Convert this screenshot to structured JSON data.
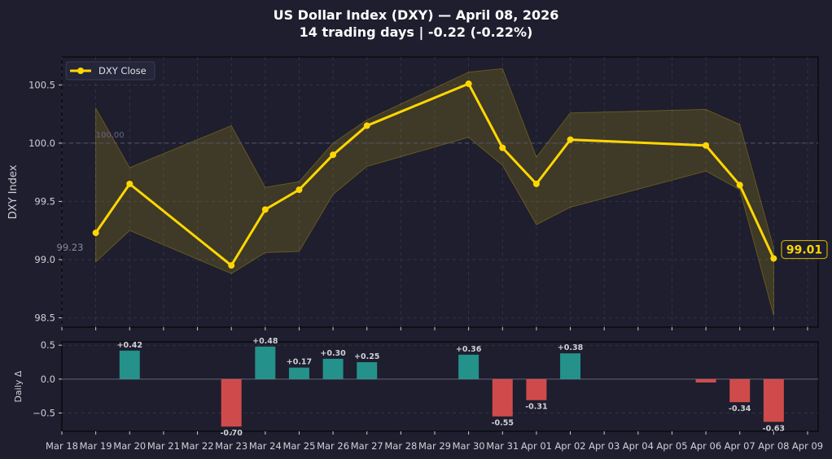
{
  "chart_data": [
    {
      "type": "line",
      "title": "US Dollar Index (DXY)  —  April 08, 2026",
      "subtitle": "14 trading days  |  -0.22 (-0.22%)",
      "xlabel": "",
      "ylabel": "DXY Index",
      "ylim": [
        98.42,
        100.74
      ],
      "yticks": [
        98.5,
        99.0,
        99.5,
        100.0,
        100.5
      ],
      "ytick_labels": [
        "98.5",
        "99.0",
        "99.5",
        "100.0",
        "100.5"
      ],
      "grid": true,
      "legend": "top-left",
      "series": [
        {
          "name": "DXY Close",
          "color": "#ffd700",
          "x": [
            "2026-03-19",
            "2026-03-20",
            "2026-03-23",
            "2026-03-24",
            "2026-03-25",
            "2026-03-26",
            "2026-03-27",
            "2026-03-30",
            "2026-03-31",
            "2026-04-01",
            "2026-04-02",
            "2026-04-06",
            "2026-04-07",
            "2026-04-08"
          ],
          "values": [
            99.23,
            99.65,
            98.95,
            99.43,
            99.6,
            99.9,
            100.15,
            100.51,
            99.96,
            99.65,
            100.03,
            99.98,
            99.64,
            99.01
          ],
          "high": [
            100.3,
            99.79,
            100.15,
            99.62,
            99.67,
            100.0,
            100.2,
            100.61,
            100.64,
            99.88,
            100.26,
            100.29,
            100.16,
            99.1
          ],
          "low": [
            98.98,
            99.25,
            98.88,
            99.06,
            99.07,
            99.56,
            99.8,
            100.05,
            99.81,
            99.3,
            99.45,
            99.76,
            99.6,
            98.52
          ]
        }
      ],
      "reference_line": {
        "value": 100.0,
        "label": "100.00"
      },
      "annotations": {
        "start_label": "99.23",
        "end_label": "99.01"
      }
    },
    {
      "type": "bar",
      "ylabel": "Daily Δ",
      "ylim": [
        -0.77,
        0.55
      ],
      "yticks": [
        -0.5,
        0.0,
        0.5
      ],
      "ytick_labels": [
        "−0.5",
        "0.0",
        "0.5"
      ],
      "positive_color": "#26a69a",
      "negative_color": "#ef5350",
      "x": [
        "2026-03-20",
        "2026-03-23",
        "2026-03-24",
        "2026-03-25",
        "2026-03-26",
        "2026-03-27",
        "2026-03-30",
        "2026-03-31",
        "2026-04-01",
        "2026-04-02",
        "2026-04-06",
        "2026-04-07",
        "2026-04-08"
      ],
      "values": [
        0.42,
        -0.7,
        0.48,
        0.17,
        0.3,
        0.25,
        0.36,
        -0.55,
        -0.31,
        0.38,
        -0.05,
        -0.34,
        -0.63
      ],
      "labels": [
        "+0.42",
        "-0.70",
        "+0.48",
        "+0.17",
        "+0.30",
        "+0.25",
        "+0.36",
        "-0.55",
        "-0.31",
        "+0.38",
        "",
        "-0.34",
        "-0.63"
      ],
      "xlim": [
        "2026-03-18",
        "2026-04-09"
      ],
      "xtick_labels": [
        "Mar 18",
        "Mar 19",
        "Mar 20",
        "Mar 21",
        "Mar 22",
        "Mar 23",
        "Mar 24",
        "Mar 25",
        "Mar 26",
        "Mar 27",
        "Mar 28",
        "Mar 29",
        "Mar 30",
        "Mar 31",
        "Apr 01",
        "Apr 02",
        "Apr 03",
        "Apr 04",
        "Apr 05",
        "Apr 06",
        "Apr 07",
        "Apr 08",
        "Apr 09"
      ]
    }
  ]
}
